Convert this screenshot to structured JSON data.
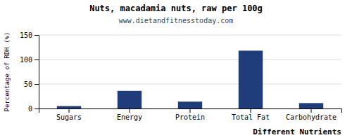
{
  "chart_data": {
    "type": "bar",
    "title": "Nuts, macadamia nuts, raw per 100g",
    "subtitle": "www.dietandfitnesstoday.com",
    "xlabel": "Different Nutrients",
    "ylabel": "Percentage of RDH (%)",
    "categories": [
      "Sugars",
      "Energy",
      "Protein",
      "Total Fat",
      "Carbohydrate"
    ],
    "values": [
      5,
      36,
      14,
      118,
      11
    ],
    "color": "#1f3d7a",
    "ylim": [
      0,
      150
    ],
    "yticks": [
      0,
      50,
      100,
      150
    ],
    "grid": true
  }
}
